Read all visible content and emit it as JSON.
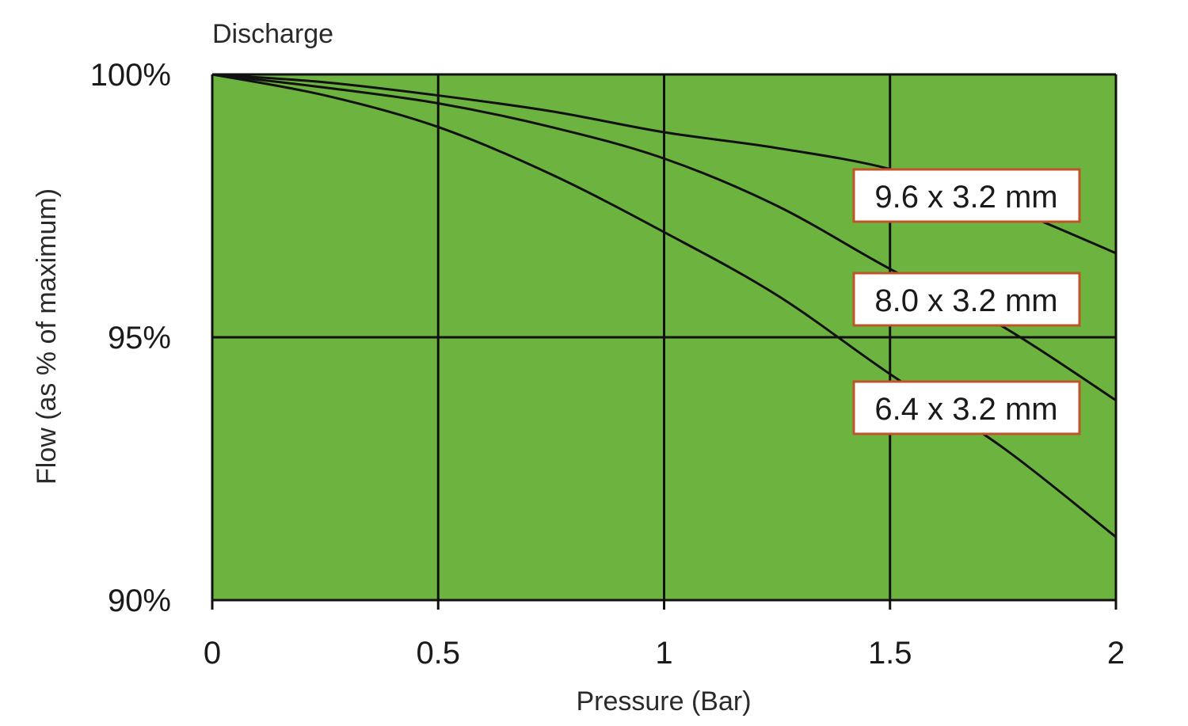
{
  "chart_data": {
    "type": "line",
    "title": "Discharge",
    "xlabel": "Pressure (Bar)",
    "ylabel": "Flow (as % of maximum)",
    "xlim": [
      0,
      2
    ],
    "ylim": [
      90,
      100
    ],
    "x_ticks": [
      "0",
      "0.5",
      "1",
      "1.5",
      "2"
    ],
    "x_tick_values": [
      0,
      0.5,
      1,
      1.5,
      2
    ],
    "y_ticks": [
      "90%",
      "95%",
      "100%"
    ],
    "y_tick_values": [
      90,
      95,
      100
    ],
    "grid": true,
    "colors": {
      "plot_bg": "#6db33f",
      "line": "#111111",
      "label_border": "#c0532a",
      "label_bg": "#ffffff"
    },
    "series": [
      {
        "name": "9.6 x 3.2 mm",
        "x": [
          0,
          0.25,
          0.5,
          0.75,
          1,
          1.25,
          1.5,
          1.75,
          2
        ],
        "values": [
          100,
          99.85,
          99.6,
          99.3,
          98.9,
          98.6,
          98.2,
          97.5,
          96.6
        ]
      },
      {
        "name": "8.0 x 3.2 mm",
        "x": [
          0,
          0.25,
          0.5,
          0.75,
          1,
          1.25,
          1.5,
          1.75,
          2
        ],
        "values": [
          100,
          99.75,
          99.45,
          99.0,
          98.4,
          97.5,
          96.3,
          95.2,
          93.8
        ]
      },
      {
        "name": "6.4 x 3.2 mm",
        "x": [
          0,
          0.25,
          0.5,
          0.75,
          1,
          1.25,
          1.5,
          1.75,
          2
        ],
        "values": [
          100,
          99.6,
          99.0,
          98.1,
          97.0,
          95.8,
          94.3,
          92.9,
          91.2
        ]
      }
    ]
  }
}
